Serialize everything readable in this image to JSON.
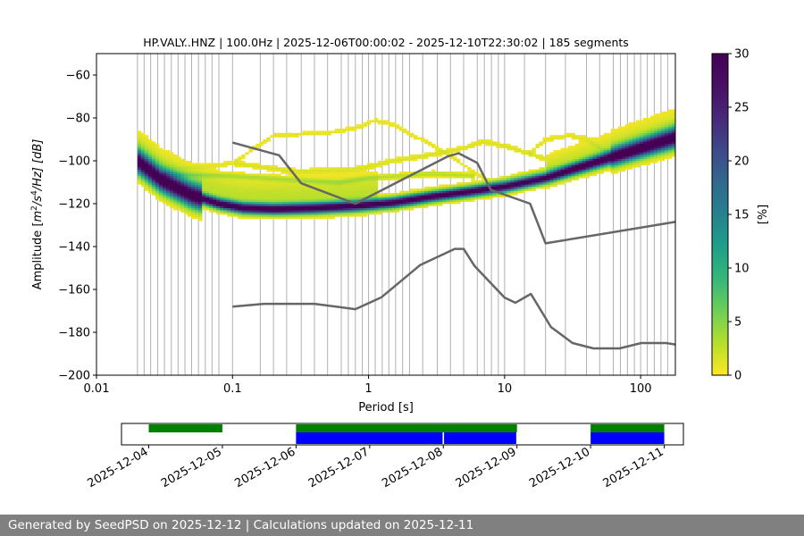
{
  "chart_data": {
    "type": "heatmap",
    "title": "HP.VALY..HNZ | 100.0Hz | 2025-12-06T00:00:02 - 2025-12-10T22:30:02 | 185 segments",
    "xlabel": "Period [s]",
    "ylabel_parts": {
      "prefix": "Amplitude [",
      "m": "m",
      "e1": "2",
      "mid": "/s",
      "e2": "4",
      "end": "/Hz] [dB]"
    },
    "x_scale": "log",
    "xlim": [
      0.01,
      180
    ],
    "ylim": [
      -200,
      -50
    ],
    "xticks": [
      {
        "v": 0.01,
        "label": "0.01"
      },
      {
        "v": 0.1,
        "label": "0.1"
      },
      {
        "v": 1,
        "label": "1"
      },
      {
        "v": 10,
        "label": "10"
      },
      {
        "v": 100,
        "label": "100"
      }
    ],
    "yticks": [
      {
        "v": -60,
        "label": "−60"
      },
      {
        "v": -80,
        "label": "−80"
      },
      {
        "v": -100,
        "label": "−100"
      },
      {
        "v": -120,
        "label": "−120"
      },
      {
        "v": -140,
        "label": "−140"
      },
      {
        "v": -160,
        "label": "−160"
      },
      {
        "v": -180,
        "label": "−180"
      },
      {
        "v": -200,
        "label": "−200"
      }
    ],
    "grid_periods": [
      0.02,
      0.0224,
      0.025,
      0.0282,
      0.0316,
      0.0355,
      0.0398,
      0.0447,
      0.05,
      0.0562,
      0.0631,
      0.0707,
      0.0794,
      0.1,
      0.16,
      0.2,
      0.25,
      0.32,
      0.4,
      0.5,
      0.63,
      0.71,
      0.8,
      0.9,
      1,
      1.12,
      1.26,
      1.41,
      1.58,
      1.78,
      2,
      2.5,
      3.2,
      4,
      5,
      6.3,
      7.1,
      8,
      9,
      10,
      14,
      20,
      28,
      40,
      50,
      63,
      71,
      80,
      90,
      100,
      112,
      126,
      141,
      158
    ],
    "colorbar": {
      "label": "[%]",
      "min": 0,
      "max": 30,
      "ticks": [
        "0",
        "5",
        "10",
        "15",
        "20",
        "25",
        "30"
      ]
    },
    "mode_curve": [
      [
        0.02,
        -100
      ],
      [
        0.03,
        -109
      ],
      [
        0.05,
        -116
      ],
      [
        0.08,
        -120
      ],
      [
        0.12,
        -122
      ],
      [
        0.2,
        -122.5
      ],
      [
        0.4,
        -122
      ],
      [
        0.8,
        -121
      ],
      [
        1.5,
        -119.5
      ],
      [
        3,
        -116.5
      ],
      [
        6,
        -114
      ],
      [
        10,
        -112
      ],
      [
        20,
        -108
      ],
      [
        50,
        -100
      ],
      [
        100,
        -94
      ],
      [
        180,
        -89
      ]
    ],
    "spread_curves": [
      {
        "pts": [
          [
            0.1,
            -101
          ],
          [
            0.3,
            -105
          ],
          [
            0.8,
            -104
          ],
          [
            1.5,
            -100
          ],
          [
            3,
            -97
          ],
          [
            5,
            -94
          ],
          [
            7,
            -91
          ],
          [
            10,
            -93
          ],
          [
            20,
            -99
          ]
        ],
        "intensity": 1.5
      },
      {
        "pts": [
          [
            0.03,
            -104
          ],
          [
            0.06,
            -103
          ],
          [
            0.1,
            -101
          ],
          [
            0.2,
            -88
          ],
          [
            0.5,
            -87
          ],
          [
            0.9,
            -84
          ],
          [
            1.1,
            -81
          ],
          [
            1.5,
            -83
          ],
          [
            3,
            -93
          ],
          [
            5,
            -102
          ],
          [
            8,
            -110
          ]
        ],
        "intensity": 1
      },
      {
        "pts": [
          [
            0.03,
            -106
          ],
          [
            0.1,
            -107
          ],
          [
            0.3,
            -109
          ],
          [
            0.6,
            -110
          ],
          [
            1,
            -108
          ],
          [
            3,
            -106
          ],
          [
            6,
            -107
          ]
        ],
        "intensity": 3
      },
      {
        "pts": [
          [
            15,
            -97
          ],
          [
            20,
            -90
          ],
          [
            30,
            -88
          ],
          [
            40,
            -90
          ],
          [
            60,
            -97
          ]
        ],
        "intensity": 1.2
      },
      {
        "pts": [
          [
            8,
            -110
          ],
          [
            20,
            -104
          ],
          [
            50,
            -100
          ],
          [
            100,
            -96
          ],
          [
            180,
            -93
          ]
        ],
        "intensity": 1.5
      }
    ],
    "nhnm": [
      [
        0.1,
        -91.5
      ],
      [
        0.22,
        -97.4
      ],
      [
        0.32,
        -110.5
      ],
      [
        0.8,
        -120
      ],
      [
        3.8,
        -98
      ],
      [
        4.6,
        -96.5
      ],
      [
        6.3,
        -101
      ],
      [
        7.9,
        -113.5
      ],
      [
        15.4,
        -120
      ],
      [
        20,
        -138.5
      ],
      [
        180,
        -128.5
      ]
    ],
    "nlnm": [
      [
        0.1,
        -168
      ],
      [
        0.17,
        -166.7
      ],
      [
        0.4,
        -166.7
      ],
      [
        0.8,
        -169.2
      ],
      [
        1.24,
        -163.7
      ],
      [
        2.4,
        -148.6
      ],
      [
        4.3,
        -141.1
      ],
      [
        5,
        -141.1
      ],
      [
        6,
        -149
      ],
      [
        10,
        -163.8
      ],
      [
        12,
        -166.2
      ],
      [
        15.6,
        -162.1
      ],
      [
        21.9,
        -177.5
      ],
      [
        31.6,
        -185
      ],
      [
        45,
        -187.5
      ],
      [
        70,
        -187.5
      ],
      [
        101,
        -185
      ],
      [
        154,
        -185
      ],
      [
        180,
        -185.7
      ]
    ]
  },
  "timeline": {
    "ticks": [
      "2025-12-04",
      "2025-12-05",
      "2025-12-06",
      "2025-12-07",
      "2025-12-08",
      "2025-12-09",
      "2025-12-10",
      "2025-12-11"
    ],
    "start_day": 3.63,
    "end_day": 11.26,
    "data_segments": [
      [
        4,
        5
      ],
      [
        6,
        9
      ],
      [
        10,
        11
      ]
    ],
    "processed_segments": [
      [
        6,
        7.99
      ],
      [
        8.01,
        8.99
      ],
      [
        10,
        11
      ]
    ],
    "data_color": "#008000",
    "processed_color": "#0000ff"
  },
  "footer": {
    "text": "Generated by SeedPSD on 2025-12-12 | Calculations updated on 2025-12-11",
    "background": "#808080"
  },
  "colors": {
    "model_lines": "#666666",
    "grid": "#b0b0b0"
  }
}
